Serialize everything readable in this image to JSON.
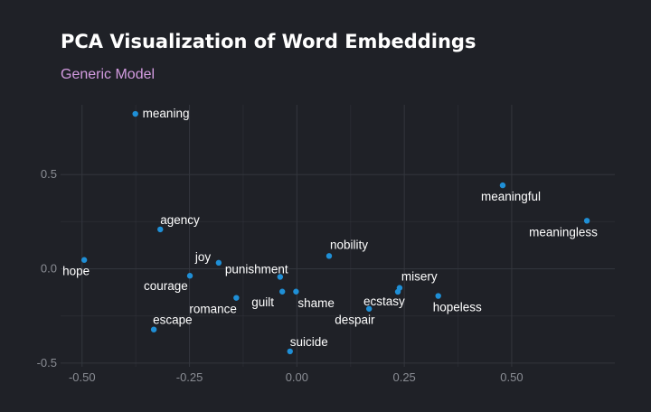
{
  "chart_data": {
    "type": "scatter",
    "title": "PCA Visualization of Word Embeddings",
    "subtitle": "Generic Model",
    "subtitle_color": "#d39be0",
    "point_color": "#1f8fd6",
    "xlim": [
      -0.55,
      0.74
    ],
    "ylim": [
      -0.52,
      0.87
    ],
    "x_ticks": [
      -0.5,
      -0.25,
      0.0,
      0.25,
      0.5
    ],
    "x_tick_labels": [
      "-0.50",
      "-0.25",
      "0.00",
      "0.25",
      "0.50"
    ],
    "y_ticks": [
      -0.5,
      0.0,
      0.5
    ],
    "y_tick_labels": [
      "-0.5",
      "0.0",
      "0.5"
    ],
    "grid": true,
    "points": [
      {
        "word": "meaning",
        "x": -0.376,
        "y": 0.822
      },
      {
        "word": "meaningful",
        "x": 0.479,
        "y": 0.443
      },
      {
        "word": "meaningless",
        "x": 0.675,
        "y": 0.255
      },
      {
        "word": "agency",
        "x": -0.318,
        "y": 0.209
      },
      {
        "word": "hope",
        "x": -0.495,
        "y": 0.047
      },
      {
        "word": "joy",
        "x": -0.182,
        "y": 0.032
      },
      {
        "word": "nobility",
        "x": 0.075,
        "y": 0.068
      },
      {
        "word": "punishment",
        "x": -0.039,
        "y": -0.043
      },
      {
        "word": "courage",
        "x": -0.249,
        "y": -0.037
      },
      {
        "word": "misery",
        "x": 0.239,
        "y": -0.101
      },
      {
        "word": "guilt",
        "x": -0.034,
        "y": -0.121
      },
      {
        "word": "shame",
        "x": -0.002,
        "y": -0.121
      },
      {
        "word": "ecstasy",
        "x": 0.235,
        "y": -0.122
      },
      {
        "word": "hopeless",
        "x": 0.329,
        "y": -0.144
      },
      {
        "word": "romance",
        "x": -0.141,
        "y": -0.154
      },
      {
        "word": "despair",
        "x": 0.168,
        "y": -0.212
      },
      {
        "word": "escape",
        "x": -0.333,
        "y": -0.322
      },
      {
        "word": "suicide",
        "x": -0.016,
        "y": -0.438
      }
    ]
  }
}
